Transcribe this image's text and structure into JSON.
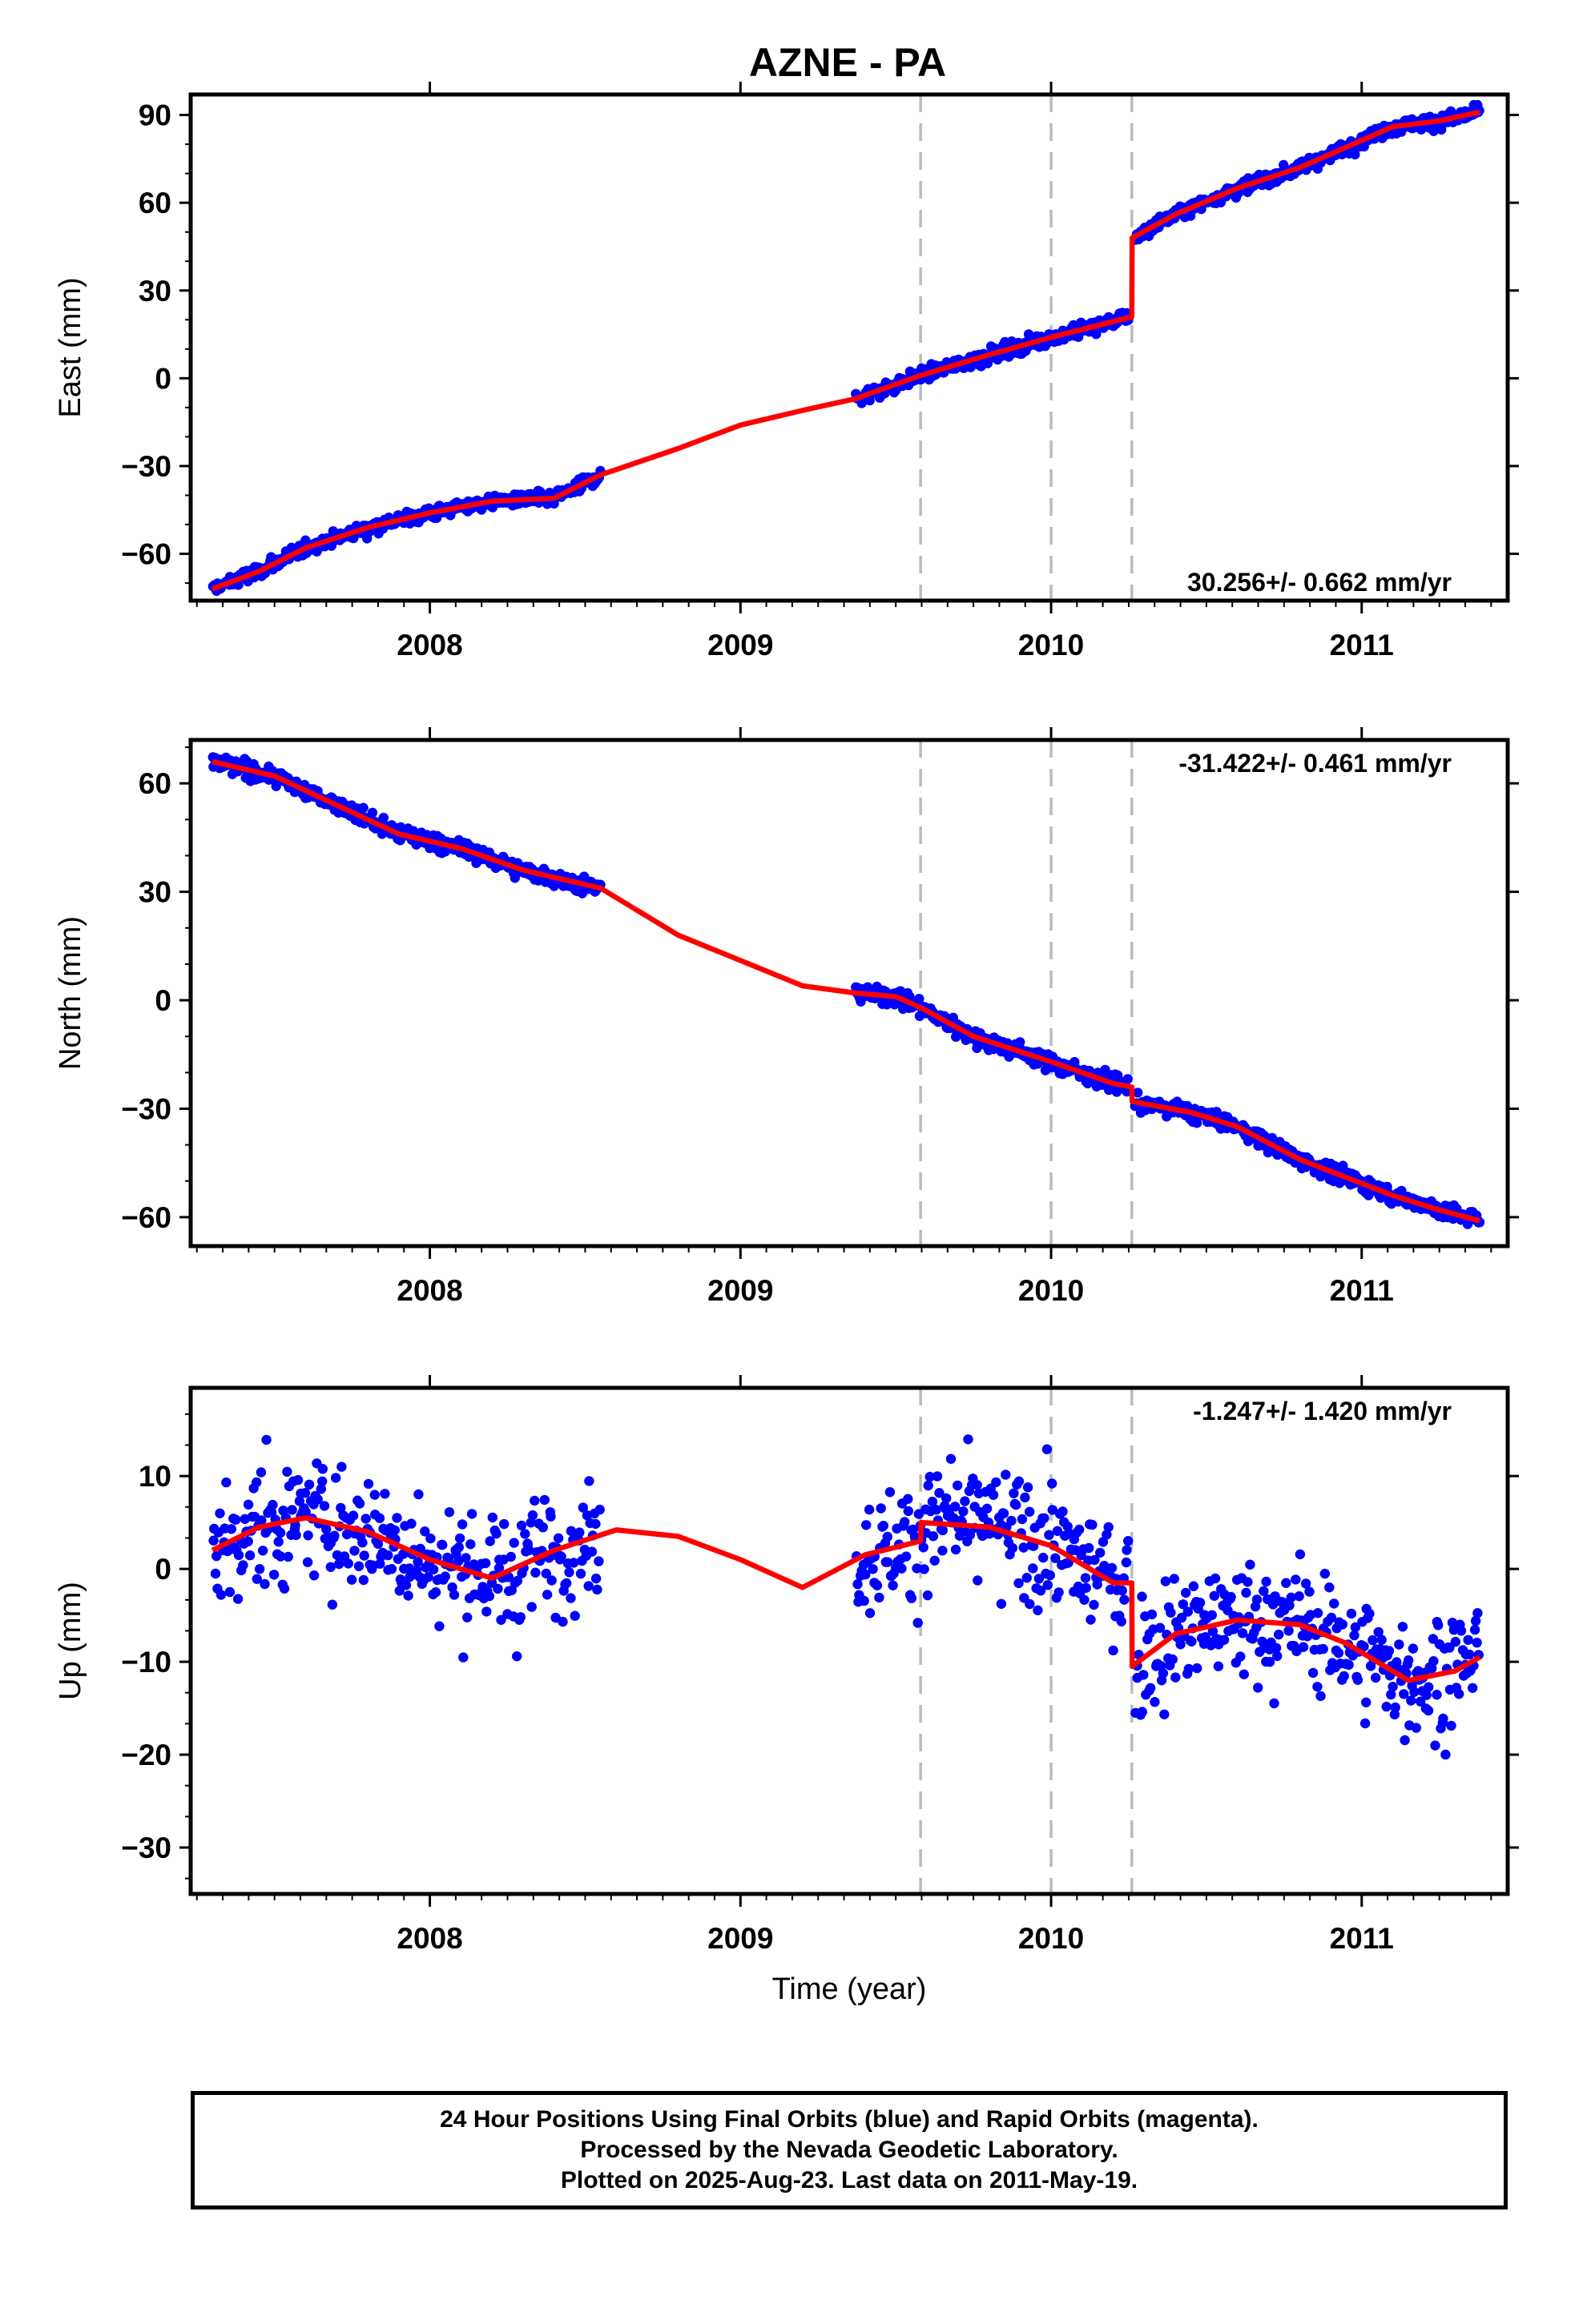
{
  "title": "AZNE - PA",
  "caption": {
    "line1": "24 Hour Positions Using Final Orbits (blue) and Rapid Orbits (magenta).",
    "line2": "Processed by the Nevada Geodetic Laboratory.",
    "line3": "Plotted on 2025-Aug-23. Last data on 2011-May-19."
  },
  "colors": {
    "data_points": "#0000ff",
    "model_fit": "#ff0000",
    "event_lines": "#bbbbbb",
    "axes": "#000000"
  },
  "chart_data": [
    {
      "type": "scatter",
      "ylabel": "East (mm)",
      "xlabel": "",
      "xlim": [
        2007.23,
        2011.47
      ],
      "ylim": [
        -76,
        97
      ],
      "xticks": [
        2008,
        2009,
        2010,
        2011
      ],
      "yticks": [
        -60,
        -30,
        0,
        30,
        60,
        90
      ],
      "rate_label": "30.256+/- 0.662 mm/yr",
      "rate_position": "bottom-right",
      "event_lines": [
        2009.58,
        2010.0,
        2010.26
      ],
      "data_segments": [
        [
          2007.3,
          2008.55
        ],
        [
          2009.37,
          2010.25
        ],
        [
          2010.27,
          2011.38
        ]
      ],
      "scatter_sd": 1.7,
      "series": [
        {
          "kind": "model",
          "x": [
            2007.3,
            2007.45,
            2007.6,
            2007.8,
            2008.0,
            2008.2,
            2008.4,
            2008.55,
            2008.8,
            2009.0,
            2009.2,
            2009.37,
            2009.58,
            2009.8,
            2010.0,
            2010.26,
            2010.261,
            2010.4,
            2010.6,
            2010.8,
            2010.95,
            2011.1,
            2011.25,
            2011.38
          ],
          "y": [
            -72,
            -66,
            -58,
            -51,
            -46,
            -42,
            -41,
            -33,
            -24,
            -16,
            -11,
            -7,
            1,
            8,
            14,
            21,
            48,
            56,
            65,
            72,
            79,
            86,
            88,
            91
          ]
        }
      ]
    },
    {
      "type": "scatter",
      "ylabel": "North (mm)",
      "xlabel": "",
      "xlim": [
        2007.23,
        2011.47
      ],
      "ylim": [
        -68,
        72
      ],
      "xticks": [
        2008,
        2009,
        2010,
        2011
      ],
      "yticks": [
        -60,
        -30,
        0,
        30,
        60
      ],
      "rate_label": "-31.422+/- 0.461 mm/yr",
      "rate_position": "top-right",
      "event_lines": [
        2009.58,
        2010.0,
        2010.26
      ],
      "data_segments": [
        [
          2007.3,
          2008.55
        ],
        [
          2009.37,
          2010.25
        ],
        [
          2010.27,
          2011.38
        ]
      ],
      "scatter_sd": 1.6,
      "series": [
        {
          "kind": "model",
          "x": [
            2007.3,
            2007.5,
            2007.7,
            2007.9,
            2008.1,
            2008.3,
            2008.55,
            2008.8,
            2009.0,
            2009.2,
            2009.37,
            2009.5,
            2009.58,
            2009.75,
            2010.0,
            2010.2,
            2010.26,
            2010.261,
            2010.45,
            2010.6,
            2010.8,
            2010.95,
            2011.1,
            2011.25,
            2011.38
          ],
          "y": [
            66,
            62,
            54,
            46,
            42,
            36,
            31,
            18,
            11,
            4,
            2,
            1,
            -2,
            -10,
            -17,
            -23,
            -24,
            -28,
            -31,
            -35,
            -44,
            -49,
            -54,
            -58,
            -61
          ]
        }
      ]
    },
    {
      "type": "scatter",
      "ylabel": "Up (mm)",
      "xlabel": "Time (year)",
      "xlim": [
        2007.23,
        2011.47
      ],
      "ylim": [
        -35,
        19.5
      ],
      "xticks": [
        2008,
        2009,
        2010,
        2011
      ],
      "yticks": [
        -30,
        -20,
        -10,
        0,
        10
      ],
      "rate_label": "-1.247+/- 1.420 mm/yr",
      "rate_position": "top-right",
      "event_lines": [
        2009.58,
        2010.0,
        2010.26
      ],
      "data_segments": [
        [
          2007.3,
          2008.55
        ],
        [
          2009.37,
          2010.25
        ],
        [
          2010.27,
          2011.38
        ]
      ],
      "scatter_sd": 4.6,
      "series": [
        {
          "kind": "model",
          "x": [
            2007.3,
            2007.45,
            2007.6,
            2007.8,
            2008.0,
            2008.2,
            2008.4,
            2008.6,
            2008.8,
            2009.0,
            2009.2,
            2009.4,
            2009.58,
            2009.581,
            2009.8,
            2010.0,
            2010.2,
            2010.26,
            2010.261,
            2010.4,
            2010.6,
            2010.8,
            2010.95,
            2011.15,
            2011.3,
            2011.38
          ],
          "y": [
            2,
            4.5,
            5.5,
            4,
            1,
            -1,
            2,
            4.2,
            3.5,
            1,
            -2,
            1.5,
            3,
            5,
            4.5,
            2.5,
            -1.5,
            -1.5,
            -10.5,
            -7,
            -5.5,
            -6,
            -8,
            -12,
            -11,
            -9.5
          ]
        }
      ]
    }
  ]
}
